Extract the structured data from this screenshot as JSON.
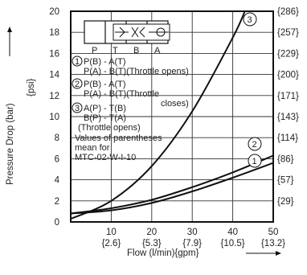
{
  "chart_data": {
    "type": "line",
    "xlabel": "Flow (l/min){gpm}",
    "ylabel": "Pressure Drop (bar)",
    "ylabel_secondary": "{psi}",
    "xlim": [
      0,
      50
    ],
    "ylim": [
      0,
      20
    ],
    "x_ticks": [
      "10",
      "20",
      "30",
      "40",
      "50"
    ],
    "x_ticks_secondary": [
      "{2.6}",
      "{5.3}",
      "{7.9}",
      "{10.5}",
      "{13.2}"
    ],
    "y_ticks": [
      "0",
      "2",
      "4",
      "6",
      "8",
      "10",
      "12",
      "14",
      "16",
      "18",
      "20"
    ],
    "y_ticks_secondary": [
      "{29}",
      "{57}",
      "{86}",
      "{114}",
      "{143}",
      "{171}",
      "{200}",
      "{229}",
      "{257}",
      "{286}"
    ],
    "grid": true,
    "series": [
      {
        "name": "1",
        "x": [
          0,
          10,
          20,
          30,
          40,
          50
        ],
        "y": [
          0.8,
          1.1,
          1.8,
          2.9,
          4.2,
          5.6
        ]
      },
      {
        "name": "2",
        "x": [
          0,
          10,
          20,
          30,
          40,
          50
        ],
        "y": [
          0.8,
          1.3,
          2.1,
          3.3,
          4.7,
          6.3
        ]
      },
      {
        "name": "3",
        "x": [
          0,
          10,
          20,
          30,
          40,
          43
        ],
        "y": [
          0.3,
          2.0,
          5.3,
          10.5,
          17.5,
          20.0
        ]
      }
    ],
    "annotations": {
      "ports": [
        "P",
        "T",
        "B",
        "A"
      ],
      "mode1_label": "1",
      "mode1_lines": [
        "P(B) - A(T)",
        "P(A) - B(T)(Throttle opens)"
      ],
      "mode2_label": "2",
      "mode2_lines": [
        "P(B) - A(T)",
        "P(A) - B(T)(Throttle",
        "closes)"
      ],
      "mode3_label": "3",
      "mode3_lines": [
        "A(P) - T(B)",
        "B(P) - T(A)",
        "(Throttle opens)"
      ],
      "note_lines": [
        "Values of parentheses",
        "mean for",
        "MTC-02-W-I-10"
      ]
    }
  }
}
